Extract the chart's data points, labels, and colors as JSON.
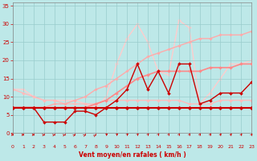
{
  "xlabel": "Vent moyen/en rafales ( km/h )",
  "bg_color": "#bde8e8",
  "grid_color": "#99cccc",
  "xlim": [
    0,
    23
  ],
  "ylim": [
    0,
    36
  ],
  "yticks": [
    0,
    5,
    10,
    15,
    20,
    25,
    30,
    35
  ],
  "xticks": [
    0,
    1,
    2,
    3,
    4,
    5,
    6,
    7,
    8,
    9,
    10,
    11,
    12,
    13,
    14,
    15,
    16,
    17,
    18,
    19,
    20,
    21,
    22,
    23
  ],
  "lines": [
    {
      "y": [
        7,
        7,
        7,
        7,
        7,
        7,
        7,
        7,
        7,
        7,
        7,
        7,
        7,
        7,
        7,
        7,
        7,
        7,
        7,
        7,
        7,
        7,
        7,
        7
      ],
      "color": "#cc0000",
      "lw": 1.5,
      "ms": 2.5,
      "zorder": 6
    },
    {
      "y": [
        7,
        7,
        7,
        3,
        3,
        3,
        6,
        6,
        5,
        7,
        9,
        12,
        19,
        12,
        17,
        11,
        19,
        19,
        8,
        9,
        11,
        11,
        11,
        14
      ],
      "color": "#cc0000",
      "lw": 1.0,
      "ms": 2.0,
      "zorder": 5
    },
    {
      "y": [
        12,
        11,
        10,
        9,
        9,
        8,
        8,
        8,
        8,
        9,
        9,
        9,
        9,
        9,
        9,
        9,
        9,
        8,
        8,
        8,
        9,
        9,
        9,
        9
      ],
      "color": "#ffbbbb",
      "lw": 1.0,
      "ms": 2.0,
      "zorder": 2
    },
    {
      "y": [
        12,
        12,
        10,
        9,
        9,
        9,
        9,
        8,
        7,
        10,
        19,
        26,
        30,
        25,
        17,
        16,
        31,
        29,
        8,
        11,
        15,
        19,
        19,
        20
      ],
      "color": "#ffcccc",
      "lw": 1.0,
      "ms": 2.0,
      "zorder": 1
    },
    {
      "y": [
        7,
        7,
        7,
        7,
        7,
        7,
        7,
        7,
        8,
        9,
        11,
        13,
        15,
        16,
        17,
        17,
        17,
        17,
        17,
        18,
        18,
        18,
        19,
        19
      ],
      "color": "#ff8888",
      "lw": 1.2,
      "ms": 2.0,
      "zorder": 3
    },
    {
      "y": [
        7,
        7,
        7,
        7,
        8,
        8,
        9,
        10,
        12,
        13,
        15,
        17,
        19,
        21,
        22,
        23,
        24,
        25,
        26,
        26,
        27,
        27,
        27,
        28
      ],
      "color": "#ffaaaa",
      "lw": 1.0,
      "ms": 1.8,
      "zorder": 2
    }
  ],
  "arrow_angles": [
    270,
    270,
    270,
    245,
    240,
    235,
    228,
    222,
    215,
    210,
    208,
    206,
    204,
    203,
    202,
    201,
    200,
    200,
    200,
    200,
    198,
    197,
    196,
    195
  ],
  "arrow_color": "#cc0000",
  "tick_color": "#cc0000",
  "xlabel_color": "#cc0000"
}
